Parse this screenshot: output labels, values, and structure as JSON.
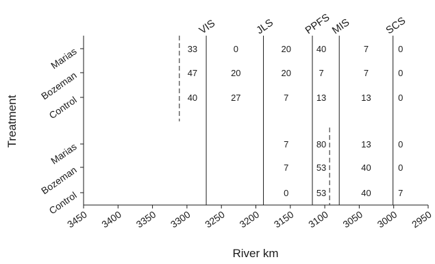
{
  "chart_data": {
    "type": "table",
    "xlabel": "River km",
    "ylabel": "Treatment",
    "x_axis": {
      "reversed": true,
      "xlim": [
        3450,
        2950
      ],
      "ticks": [
        "3450",
        "3400",
        "3350",
        "3300",
        "3250",
        "3200",
        "3150",
        "3100",
        "3050",
        "3000",
        "2950"
      ]
    },
    "sites": [
      {
        "name": "VIS",
        "km": 3272
      },
      {
        "name": "JLS",
        "km": 3189
      },
      {
        "name": "PPFS",
        "km": 3118
      },
      {
        "name": "MIS",
        "km": 3079
      },
      {
        "name": "SCS",
        "km": 3001
      }
    ],
    "release_markers": [
      {
        "km": 3311,
        "group": "upper"
      },
      {
        "km": 3093,
        "group": "lower"
      }
    ],
    "groups": [
      {
        "id": "upper",
        "rows": [
          {
            "label": "Marias",
            "cells": [
              {
                "km": 3292,
                "text": "33"
              },
              {
                "km": 3229,
                "text": "0"
              },
              {
                "km": 3156,
                "text": "20"
              },
              {
                "km": 3105,
                "text": "40"
              },
              {
                "km": 3040,
                "text": "7"
              },
              {
                "km": 2990,
                "text": "0"
              }
            ]
          },
          {
            "label": "Bozeman",
            "cells": [
              {
                "km": 3292,
                "text": "47"
              },
              {
                "km": 3229,
                "text": "20"
              },
              {
                "km": 3156,
                "text": "20"
              },
              {
                "km": 3105,
                "text": "7"
              },
              {
                "km": 3040,
                "text": "7"
              },
              {
                "km": 2990,
                "text": "0"
              }
            ]
          },
          {
            "label": "Control",
            "cells": [
              {
                "km": 3292,
                "text": "40"
              },
              {
                "km": 3229,
                "text": "27"
              },
              {
                "km": 3156,
                "text": "7"
              },
              {
                "km": 3105,
                "text": "13"
              },
              {
                "km": 3040,
                "text": "13"
              },
              {
                "km": 2990,
                "text": "0"
              }
            ]
          }
        ]
      },
      {
        "id": "lower",
        "rows": [
          {
            "label": "Marias",
            "cells": [
              {
                "km": 3156,
                "text": "7"
              },
              {
                "km": 3105,
                "text": "80"
              },
              {
                "km": 3040,
                "text": "13"
              },
              {
                "km": 2990,
                "text": "0"
              }
            ]
          },
          {
            "label": "Bozeman",
            "cells": [
              {
                "km": 3156,
                "text": "7"
              },
              {
                "km": 3105,
                "text": "53"
              },
              {
                "km": 3040,
                "text": "40"
              },
              {
                "km": 2990,
                "text": "0"
              }
            ]
          },
          {
            "label": "Control",
            "cells": [
              {
                "km": 3156,
                "text": "0"
              },
              {
                "km": 3105,
                "text": "53"
              },
              {
                "km": 3040,
                "text": "40"
              },
              {
                "km": 2990,
                "text": "7"
              }
            ]
          }
        ]
      }
    ]
  }
}
